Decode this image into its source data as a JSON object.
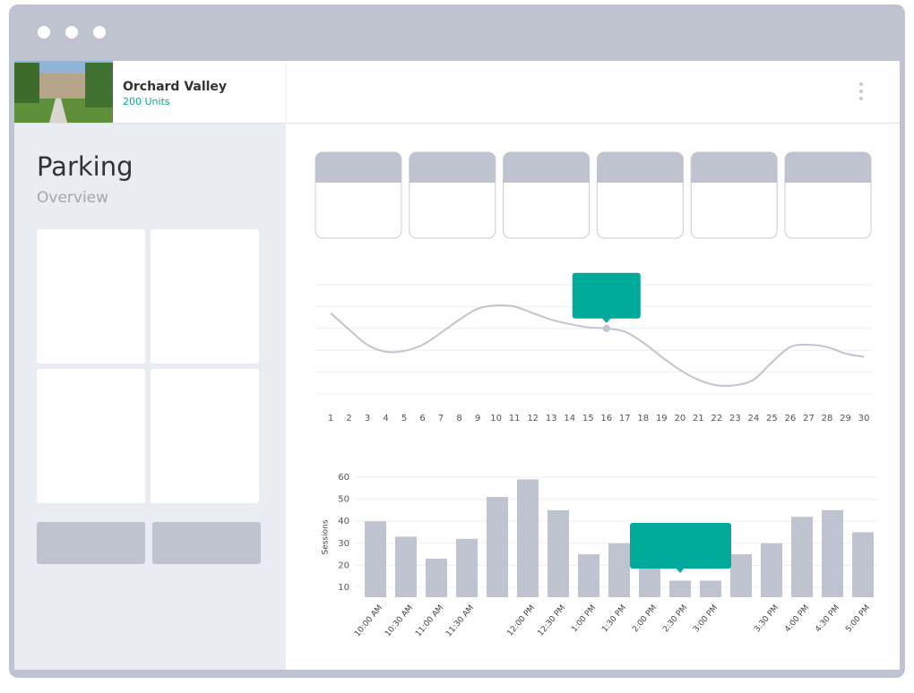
{
  "header": {
    "title": "Orchard Valley",
    "subtitle": "200 Units"
  },
  "sidebar": {
    "title": "Parking",
    "subtitle": "Overview"
  },
  "chart_data": [
    {
      "type": "line",
      "color": "#c3c2cf",
      "x": [
        1,
        2,
        3,
        4,
        5,
        6,
        7,
        8,
        9,
        10,
        11,
        12,
        13,
        14,
        15,
        16,
        17,
        18,
        19,
        20,
        21,
        22,
        23,
        24,
        25,
        26,
        27,
        28,
        29,
        30
      ],
      "values": [
        3.7,
        2.95,
        2.25,
        1.93,
        1.97,
        2.25,
        2.8,
        3.4,
        3.9,
        4.05,
        4.0,
        3.7,
        3.4,
        3.2,
        3.05,
        3.0,
        2.85,
        2.35,
        1.7,
        1.1,
        0.65,
        0.4,
        0.4,
        0.65,
        1.45,
        2.15,
        2.25,
        2.15,
        1.85,
        1.7
      ],
      "xlim": [
        1,
        30
      ],
      "xticks": [
        1,
        2,
        3,
        4,
        5,
        6,
        7,
        8,
        9,
        10,
        11,
        12,
        13,
        14,
        15,
        16,
        17,
        18,
        19,
        20,
        21,
        22,
        23,
        24,
        25,
        26,
        27,
        28,
        29,
        30
      ],
      "ylim": [
        0,
        5
      ],
      "yticks": [
        0,
        1,
        2,
        3,
        4,
        5
      ],
      "grid": true,
      "highlight": 16,
      "highlight_color": "#00aa9a"
    },
    {
      "type": "bar",
      "color": "#bfc3cf",
      "y_label": "Sessions",
      "categories": [
        "10:00 AM",
        "10:30 AM",
        "11:00 AM",
        "11:30 AM",
        null,
        "12:00 PM",
        "12:30 PM",
        "1:00 PM",
        "1:30 PM",
        "2:00 PM",
        "2:30 PM",
        "3:00 PM",
        null,
        "3:30 PM",
        "4:00 PM",
        "4:30 PM",
        "5:00 PM"
      ],
      "values": [
        40,
        33,
        23,
        32,
        51,
        59,
        45,
        25,
        30,
        20,
        13,
        13,
        25,
        30,
        42,
        45,
        35
      ],
      "ylim": [
        5.5,
        60
      ],
      "yticks": [
        10,
        20,
        30,
        40,
        50,
        60
      ],
      "grid": true,
      "highlight": 10,
      "highlight_color": "#00aa9a"
    }
  ]
}
